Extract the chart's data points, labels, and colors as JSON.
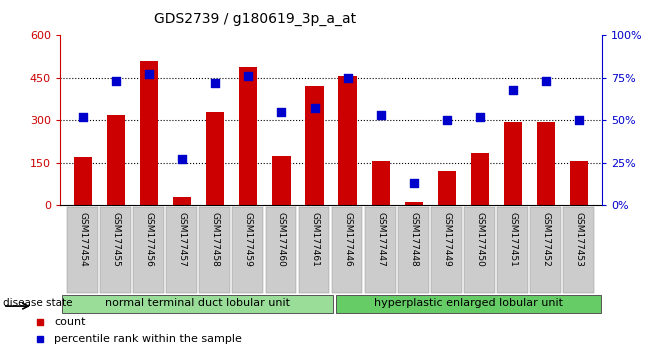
{
  "title": "GDS2739 / g180619_3p_a_at",
  "samples": [
    "GSM177454",
    "GSM177455",
    "GSM177456",
    "GSM177457",
    "GSM177458",
    "GSM177459",
    "GSM177460",
    "GSM177461",
    "GSM177446",
    "GSM177447",
    "GSM177448",
    "GSM177449",
    "GSM177450",
    "GSM177451",
    "GSM177452",
    "GSM177453"
  ],
  "counts": [
    170,
    320,
    510,
    30,
    330,
    490,
    175,
    420,
    455,
    155,
    10,
    120,
    185,
    295,
    295,
    155
  ],
  "percentiles": [
    52,
    73,
    77,
    27,
    72,
    76,
    55,
    57,
    75,
    53,
    13,
    50,
    52,
    68,
    73,
    50
  ],
  "group1_label": "normal terminal duct lobular unit",
  "group2_label": "hyperplastic enlarged lobular unit",
  "group1_count": 8,
  "group2_count": 8,
  "disease_state_label": "disease state",
  "legend_count_label": "count",
  "legend_pct_label": "percentile rank within the sample",
  "bar_color": "#cc0000",
  "dot_color": "#0000cc",
  "group1_color": "#99dd99",
  "group2_color": "#66cc66",
  "ylim_left": [
    0,
    600
  ],
  "ylim_right": [
    0,
    100
  ],
  "yticks_left": [
    0,
    150,
    300,
    450,
    600
  ],
  "yticks_right": [
    0,
    25,
    50,
    75,
    100
  ],
  "ytick_labels_left": [
    "0",
    "150",
    "300",
    "450",
    "600"
  ],
  "ytick_labels_right": [
    "0%",
    "25%",
    "50%",
    "75%",
    "100%"
  ],
  "hlines": [
    150,
    300,
    450
  ],
  "xtick_bg": "#cccccc"
}
